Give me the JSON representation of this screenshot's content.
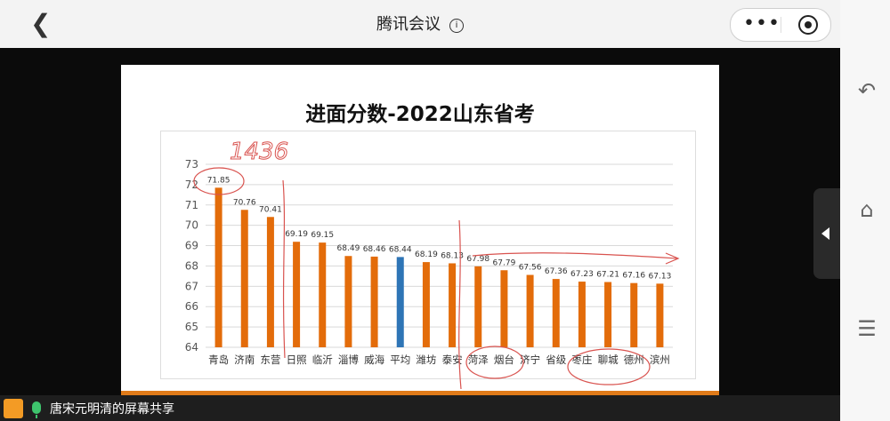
{
  "header": {
    "title": "腾讯会议",
    "info_icon": "info-icon",
    "back_icon": "chevron-left-icon",
    "more_icon": "more-icon",
    "close_icon": "record-close-icon"
  },
  "status_bar": {
    "label": "唐宋元明清的屏幕共享",
    "mic_icon": "mic-icon",
    "avatar_icon": "user-avatar-icon"
  },
  "side_nav": [
    "back-nav-icon",
    "home-nav-icon",
    "menu-nav-icon"
  ],
  "chart_data": {
    "type": "bar",
    "title": "进面分数-2022山东省考",
    "xlabel": "",
    "ylabel": "",
    "ylim": [
      64,
      73
    ],
    "yticks": [
      64,
      65,
      66,
      67,
      68,
      69,
      70,
      71,
      72,
      73
    ],
    "categories": [
      "青岛",
      "济南",
      "东营",
      "日照",
      "临沂",
      "淄博",
      "威海",
      "平均",
      "潍坊",
      "泰安",
      "菏泽",
      "烟台",
      "济宁",
      "省级",
      "枣庄",
      "聊城",
      "德州",
      "滨州"
    ],
    "values": [
      71.85,
      70.76,
      70.41,
      69.19,
      69.15,
      68.49,
      68.46,
      68.44,
      68.19,
      68.13,
      67.98,
      67.79,
      67.56,
      67.36,
      67.23,
      67.21,
      67.16,
      67.13
    ],
    "colors": {
      "bar": "#e36c0a",
      "highlight": "#2e75b6",
      "grid": "#d9d9d9"
    },
    "highlight_category": "平均",
    "annotation": "1436"
  }
}
